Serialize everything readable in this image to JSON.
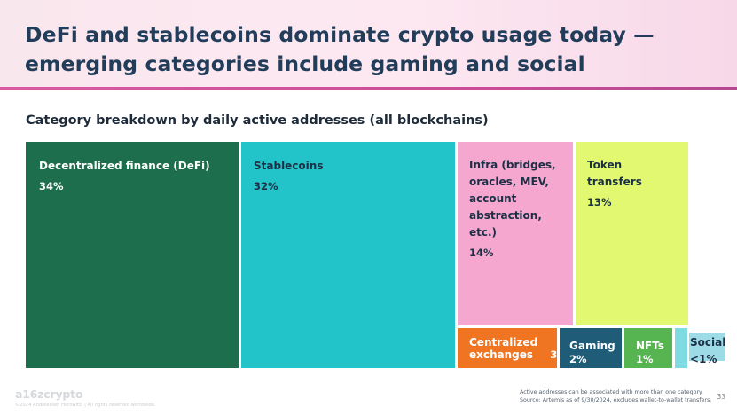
{
  "title": "DeFi and stablecoins dominate crypto usage today — emerging categories include gaming and social",
  "footnote": {
    "line1": "Active addresses can be associated with more than one category.",
    "line2": "Source: Artemis as of 9/30/2024, excludes wallet-to-wallet transfers."
  },
  "page_number": "33",
  "logo_text": "a16zcrypto",
  "copyright": "©2024 Andreessen Horowitz. | All rights reserved worldwide.",
  "chart_data": {
    "type": "treemap",
    "title": "Category breakdown by daily active addresses (all blockchains)",
    "items": [
      {
        "name": "Decentralized finance (DeFi)",
        "label": "34%",
        "value": 34,
        "color": "#1d6e4c"
      },
      {
        "name": "Stablecoins",
        "label": "32%",
        "value": 32,
        "color": "#22c4c9"
      },
      {
        "name": "Infra (bridges,\noracles, MEV,\naccount\nabstraction, etc.)",
        "label": "14%",
        "value": 14,
        "color": "#f6a7d0"
      },
      {
        "name": "Token\ntransfers",
        "label": "13%",
        "value": 13,
        "color": "#e2f871"
      },
      {
        "name": "Centralized\nexchanges",
        "label": "3%",
        "value": 3,
        "color": "#f07523"
      },
      {
        "name": "Gaming",
        "label": "2%",
        "value": 2,
        "color": "#1e5c78"
      },
      {
        "name": "NFTs",
        "label": "1%",
        "value": 1,
        "color": "#57b551"
      },
      {
        "name": "Social",
        "label": "<1%",
        "value": 0.5,
        "color": "#7fdbe2"
      }
    ]
  }
}
